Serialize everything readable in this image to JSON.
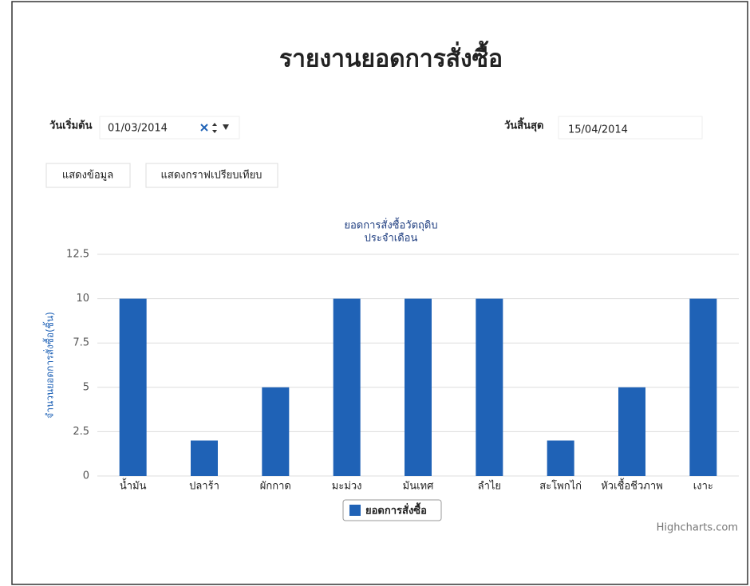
{
  "header": {
    "title": "รายงานยอดการสั่งซื้อ"
  },
  "filters": {
    "start_label": "วันเริ่มต้น",
    "start_value": "01/03/2014",
    "end_label": "วันสิ้นสุด",
    "end_value": "15/04/2014"
  },
  "buttons": [
    "แสดงข้อมูล",
    "แสดงกราฟเปรียบเทียบ"
  ],
  "chart_data": {
    "type": "bar",
    "title": "ยอดการสั่งซื้อวัตถุดิบ",
    "subtitle": "ประจำเดือน",
    "y_label": "จำนวนยอดการสั่งซื้อ(ชิ้น)",
    "categories": [
      "น้ำมัน",
      "ปลาร้า",
      "ผักกาด",
      "มะม่วง",
      "มันเทศ",
      "ลำไย",
      "สะโพกไก่",
      "หัวเชื้อชีวภาพ",
      "เงาะ"
    ],
    "series": [
      {
        "name": "ยอดการสั่งซื้อ",
        "color": "#1f62b6",
        "values": [
          10,
          2,
          5,
          10,
          10,
          10,
          2,
          5,
          10
        ]
      }
    ],
    "ylim": [
      0,
      12.5
    ],
    "yticks": [
      0,
      2.5,
      5,
      7.5,
      10,
      12.5
    ],
    "grid": true,
    "credit": "Highcharts.com"
  }
}
